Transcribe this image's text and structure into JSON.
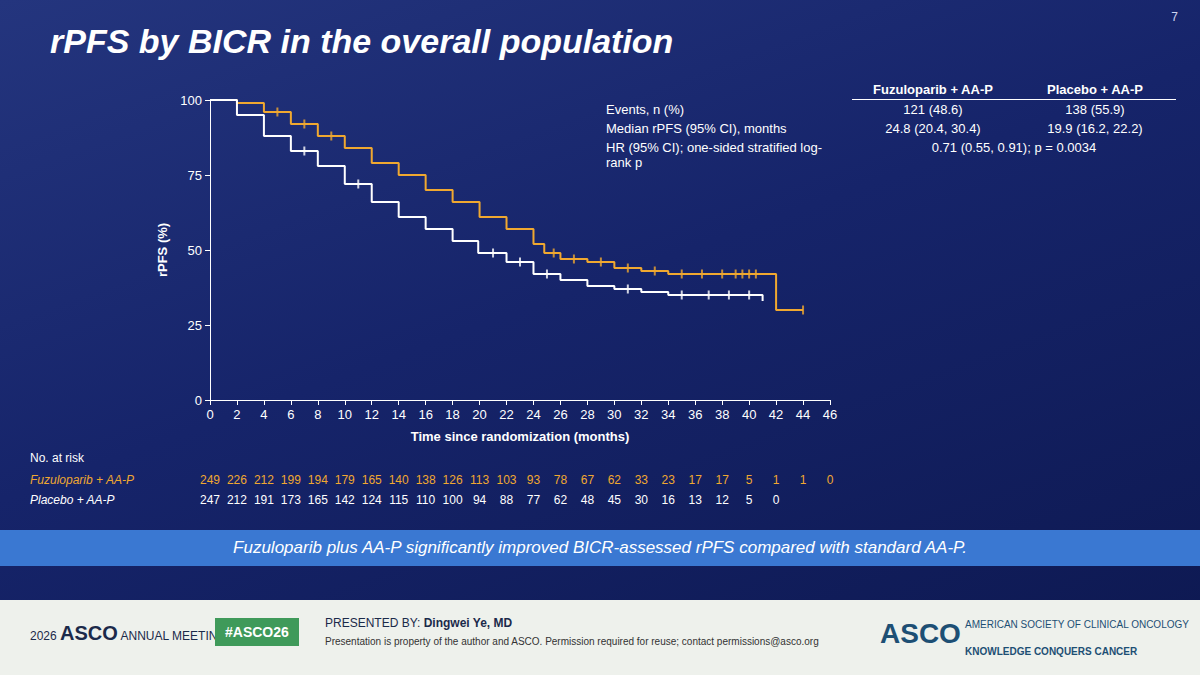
{
  "slide_number": "7",
  "title": "rPFS by BICR in the overall population",
  "chart_data": {
    "type": "line",
    "line_style": "step",
    "marker": "censor",
    "grid": false,
    "x_label": "Time since randomization (months)",
    "y_label": "rPFS (%)",
    "xlim": [
      0,
      46
    ],
    "xticks": [
      0,
      2,
      4,
      6,
      8,
      10,
      12,
      14,
      16,
      18,
      20,
      22,
      24,
      26,
      28,
      30,
      32,
      34,
      36,
      38,
      40,
      42,
      44,
      46
    ],
    "ylim": [
      0,
      100
    ],
    "yticks": [
      0,
      25,
      50,
      75,
      100
    ],
    "at_risk_title": "No. at risk",
    "series": [
      {
        "name": "Fuzuloparib + AA-P",
        "color": "#f0a830",
        "x": [
          0,
          2,
          4,
          6,
          8,
          10,
          12,
          14,
          16,
          18,
          20,
          22,
          24,
          24.8,
          26,
          28,
          30,
          32,
          34,
          41,
          42,
          44
        ],
        "values": [
          100,
          99,
          96,
          92,
          88,
          84,
          79,
          75,
          70,
          66,
          61,
          57,
          52,
          49,
          47,
          46,
          44,
          43,
          42,
          42,
          30,
          30
        ],
        "censored_x": [
          5,
          7,
          9,
          25.5,
          27,
          29,
          31,
          33,
          35,
          36.5,
          38,
          39,
          39.5,
          40,
          40.5,
          44
        ],
        "censored_values": [
          96,
          92,
          88,
          49,
          47,
          46,
          44,
          43,
          42,
          42,
          42,
          42,
          42,
          42,
          42,
          30
        ],
        "at_risk": [
          249,
          226,
          212,
          199,
          194,
          179,
          165,
          140,
          138,
          126,
          113,
          103,
          93,
          78,
          67,
          62,
          33,
          23,
          17,
          17,
          5,
          1,
          1,
          0
        ]
      },
      {
        "name": "Placebo + AA-P",
        "color": "#ffffff",
        "x": [
          0,
          2,
          4,
          6,
          8,
          10,
          12,
          14,
          16,
          18,
          19.9,
          22,
          24,
          26,
          28,
          30,
          32,
          34,
          40,
          41
        ],
        "values": [
          100,
          95,
          88,
          83,
          78,
          72,
          66,
          61,
          57,
          53,
          49,
          46,
          42,
          40,
          38,
          37,
          36,
          35,
          35,
          33
        ],
        "censored_x": [
          7,
          11,
          21,
          23,
          25,
          31,
          35,
          37,
          38.5,
          40
        ],
        "censored_values": [
          83,
          72,
          49,
          46,
          42,
          37,
          35,
          35,
          35,
          35
        ],
        "at_risk": [
          247,
          212,
          191,
          173,
          165,
          142,
          124,
          115,
          110,
          100,
          94,
          88,
          77,
          62,
          48,
          45,
          30,
          16,
          13,
          12,
          5,
          0,
          null,
          null
        ]
      }
    ],
    "stats_table": [
      {
        "label": "Events, n (%)",
        "values": [
          "121 (48.6)",
          "138 (55.9)"
        ]
      },
      {
        "label": "Median rPFS (95% CI), months",
        "values": [
          "24.8 (20.4, 30.4)",
          "19.9 (16.2, 22.2)"
        ]
      },
      {
        "label": "HR (95% CI); one-sided stratified log-rank p",
        "values": [
          "0.71 (0.55, 0.91); p = 0.0034"
        ]
      }
    ]
  },
  "takeaway": "Fuzuloparib plus AA-P significantly improved BICR-assessed rPFS compared with standard AA-P.",
  "footer": {
    "meeting_year": "2026",
    "meeting_name": "ASCO",
    "meeting_sub": "ANNUAL MEETING",
    "hashtag": "#ASCO26",
    "presenter_label": "PRESENTED BY:",
    "presenter": "Dingwei Ye, MD",
    "notice": "Presentation is property of the author and ASCO. Permission required for reuse; contact permissions@asco.org",
    "logo": "ASCO",
    "org_name": "AMERICAN SOCIETY OF CLINICAL ONCOLOGY",
    "org_motto": "KNOWLEDGE CONQUERS CANCER"
  }
}
